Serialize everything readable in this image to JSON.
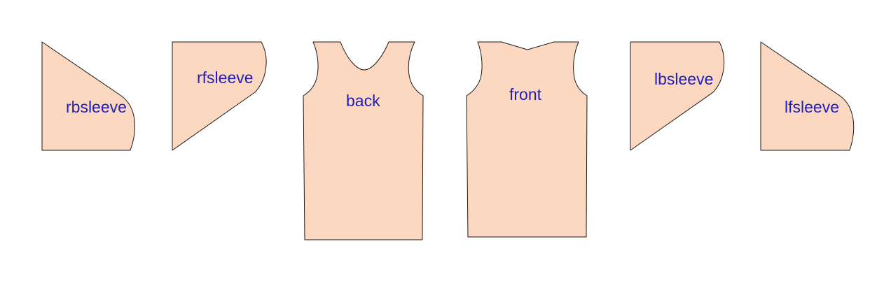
{
  "colors": {
    "background": "#ffffff",
    "piece_fill": "#fdd8c0",
    "piece_stroke": "#1a1a1a",
    "label": "#1f1fb8"
  },
  "pieces": [
    {
      "id": "rbsleeve",
      "label": "rbsleeve"
    },
    {
      "id": "rfsleeve",
      "label": "rfsleeve"
    },
    {
      "id": "back",
      "label": "back"
    },
    {
      "id": "front",
      "label": "front"
    },
    {
      "id": "lbsleeve",
      "label": "lbsleeve"
    },
    {
      "id": "lfsleeve",
      "label": "lfsleeve"
    }
  ]
}
